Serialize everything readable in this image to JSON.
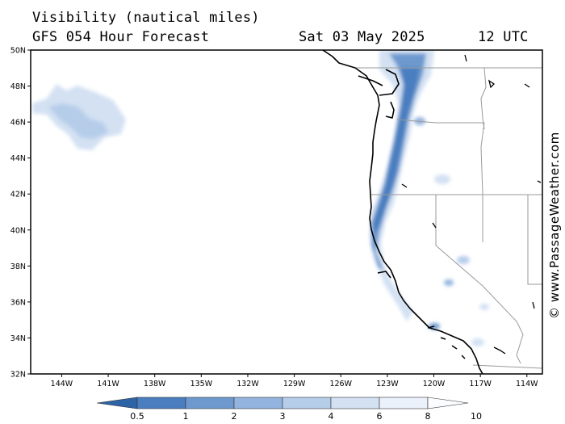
{
  "header": {
    "title": "Visibility (nautical miles)",
    "subtitle": "GFS 054 Hour Forecast",
    "date": "Sat 03 May 2025",
    "time": "12 UTC"
  },
  "credit": "© www.PassageWeather.com",
  "map": {
    "lat_range": [
      32,
      50
    ],
    "lon_range": [
      -146,
      -113
    ],
    "lat_ticks": [
      {
        "value": 32,
        "label": "32N"
      },
      {
        "value": 34,
        "label": "34N"
      },
      {
        "value": 36,
        "label": "36N"
      },
      {
        "value": 38,
        "label": "38N"
      },
      {
        "value": 40,
        "label": "40N"
      },
      {
        "value": 42,
        "label": "42N"
      },
      {
        "value": 44,
        "label": "44N"
      },
      {
        "value": 46,
        "label": "46N"
      },
      {
        "value": 48,
        "label": "48N"
      },
      {
        "value": 50,
        "label": "50N"
      }
    ],
    "lon_ticks": [
      {
        "value": -144,
        "label": "144W"
      },
      {
        "value": -141,
        "label": "141W"
      },
      {
        "value": -138,
        "label": "138W"
      },
      {
        "value": -135,
        "label": "135W"
      },
      {
        "value": -132,
        "label": "132W"
      },
      {
        "value": -129,
        "label": "129W"
      },
      {
        "value": -126,
        "label": "126W"
      },
      {
        "value": -123,
        "label": "123W"
      },
      {
        "value": -120,
        "label": "120W"
      },
      {
        "value": -117,
        "label": "117W"
      },
      {
        "value": -114,
        "label": "114W"
      }
    ]
  },
  "legend": {
    "labels": [
      "0.5",
      "1",
      "2",
      "3",
      "4",
      "6",
      "8",
      "10"
    ],
    "colors": [
      "#2d64a8",
      "#4a7ec0",
      "#6d99cf",
      "#93b4de",
      "#b6cdea",
      "#d3e1f3",
      "#eaf1fa",
      "#fafcff"
    ]
  }
}
